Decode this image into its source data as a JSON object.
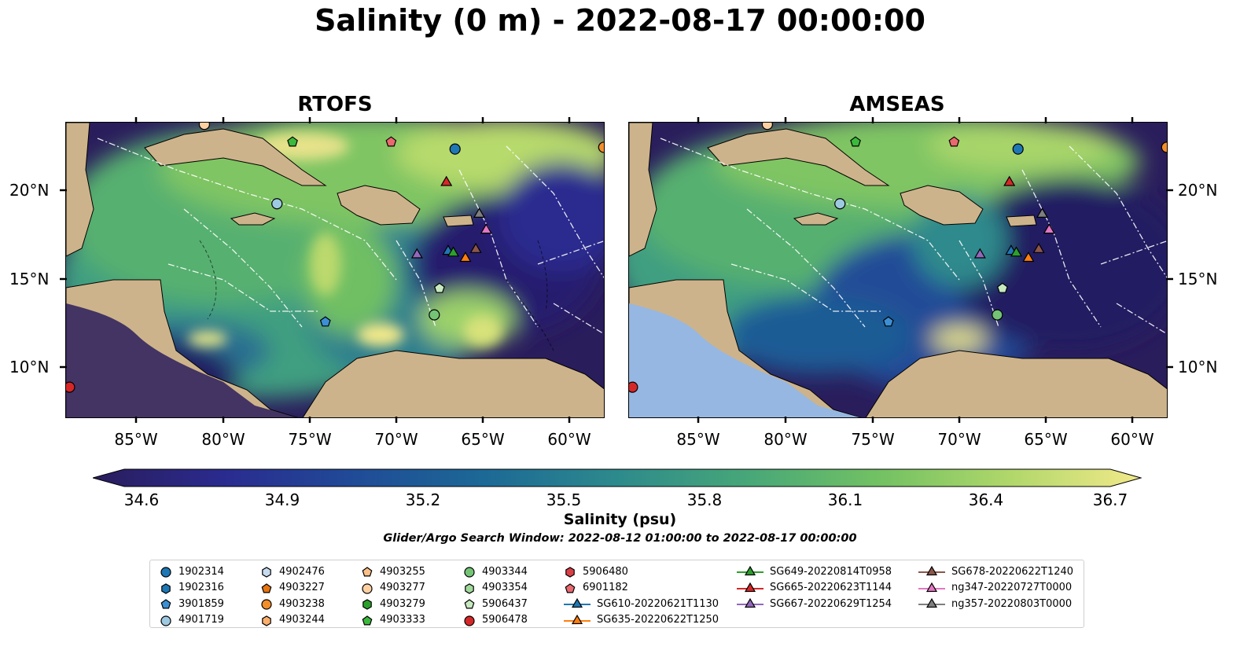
{
  "title": "Salinity (0 m) - 2022-08-17 00:00:00",
  "panels": [
    {
      "title": "RTOFS"
    },
    {
      "title": "AMSEAS"
    }
  ],
  "lat_labels": [
    "20°N",
    "15°N",
    "10°N"
  ],
  "lon_labels": [
    "85°W",
    "80°W",
    "75°W",
    "70°W",
    "65°W",
    "60°W"
  ],
  "colorbar": {
    "label": "Salinity (psu)",
    "min": 34.6,
    "max": 36.7,
    "ticks": [
      "34.6",
      "34.9",
      "35.2",
      "35.5",
      "35.8",
      "36.1",
      "36.4",
      "36.7"
    ],
    "colormap": [
      "#2a1d5c",
      "#2a2b8f",
      "#204b97",
      "#1c6996",
      "#2d8a8c",
      "#47a778",
      "#72c163",
      "#b0d76a",
      "#f2e98a"
    ]
  },
  "search_window": "Glider/Argo Search Window: 2022-08-12 01:00:00 to 2022-08-17 00:00:00",
  "land_color": "#cdb38b",
  "deep_sea_color": "#96b7e2",
  "legend": [
    {
      "label": "1902314",
      "marker": "circle",
      "color": "#1f77b4"
    },
    {
      "label": "1902316",
      "marker": "hexagon",
      "color": "#1f77b4"
    },
    {
      "label": "3901859",
      "marker": "pentagon",
      "color": "#3b8fd4"
    },
    {
      "label": "4901719",
      "marker": "circle",
      "color": "#9ecae1"
    },
    {
      "label": "4902476",
      "marker": "hexagon",
      "color": "#c6dbef"
    },
    {
      "label": "4903227",
      "marker": "pentagon",
      "color": "#e6740f"
    },
    {
      "label": "4903238",
      "marker": "circle",
      "color": "#f28e2b"
    },
    {
      "label": "4903244",
      "marker": "hexagon",
      "color": "#fdae6b"
    },
    {
      "label": "4903255",
      "marker": "pentagon",
      "color": "#fdc088"
    },
    {
      "label": "4903277",
      "marker": "circle",
      "color": "#fdd0a2"
    },
    {
      "label": "4903279",
      "marker": "hexagon",
      "color": "#2ca02c"
    },
    {
      "label": "4903333",
      "marker": "pentagon",
      "color": "#3cb83c"
    },
    {
      "label": "4903344",
      "marker": "circle",
      "color": "#74c476"
    },
    {
      "label": "4903354",
      "marker": "hexagon",
      "color": "#a1d99b"
    },
    {
      "label": "5906437",
      "marker": "pentagon",
      "color": "#c7e9c0"
    },
    {
      "label": "5906478",
      "marker": "circle",
      "color": "#d62728"
    },
    {
      "label": "5906480",
      "marker": "hexagon",
      "color": "#d94046"
    },
    {
      "label": "6901182",
      "marker": "pentagon",
      "color": "#e8696f"
    },
    {
      "label": "SG610-20220621T1130",
      "marker": "triangle-line",
      "color": "#1f77b4"
    },
    {
      "label": "SG635-20220622T1250",
      "marker": "triangle-line",
      "color": "#ff7f0e"
    },
    {
      "label": "SG649-20220814T0958",
      "marker": "triangle-line",
      "color": "#2ca02c"
    },
    {
      "label": "SG665-20220623T1144",
      "marker": "triangle-line",
      "color": "#d62728"
    },
    {
      "label": "SG667-20220629T1254",
      "marker": "triangle-line",
      "color": "#9467bd"
    },
    {
      "label": "SG678-20220622T1240",
      "marker": "triangle-line",
      "color": "#8c564b"
    },
    {
      "label": "ng347-20220727T0000",
      "marker": "triangle-line",
      "color": "#e377c2"
    },
    {
      "label": "ng357-20220803T0000",
      "marker": "triangle-line",
      "color": "#7f7f7f"
    }
  ],
  "markers": [
    {
      "id": "1902314",
      "marker": "circle",
      "color": "#1f77b4",
      "lon": -66.6,
      "lat": 22.4
    },
    {
      "id": "4901719",
      "marker": "circle",
      "color": "#9ecae1",
      "lon": -76.9,
      "lat": 19.3
    },
    {
      "id": "3901859",
      "marker": "pentagon",
      "color": "#3b8fd4",
      "lon": -74.1,
      "lat": 12.6
    },
    {
      "id": "4903333",
      "marker": "pentagon",
      "color": "#3cb83c",
      "lon": -76.0,
      "lat": 22.8
    },
    {
      "id": "6901182",
      "marker": "pentagon",
      "color": "#e8696f",
      "lon": -70.3,
      "lat": 22.8
    },
    {
      "id": "4903277",
      "marker": "circle",
      "color": "#fdd0a2",
      "lon": -81.1,
      "lat": 23.8
    },
    {
      "id": "4903238",
      "marker": "circle",
      "color": "#f28e2b",
      "lon": -58.0,
      "lat": 22.5
    },
    {
      "id": "5906478",
      "marker": "circle",
      "color": "#d62728",
      "lon": -88.9,
      "lat": 8.9
    },
    {
      "id": "4903344",
      "marker": "circle",
      "color": "#74c476",
      "lon": -67.8,
      "lat": 13.0
    },
    {
      "id": "5906437",
      "marker": "pentagon",
      "color": "#c7e9c0",
      "lon": -67.5,
      "lat": 14.5
    },
    {
      "id": "SG665-20220623T1144",
      "marker": "triangle",
      "color": "#d62728",
      "lon": -67.1,
      "lat": 20.5
    },
    {
      "id": "ng357-20220803T0000",
      "marker": "triangle",
      "color": "#7f7f7f",
      "lon": -65.2,
      "lat": 18.7
    },
    {
      "id": "ng347-20220727T0000",
      "marker": "triangle",
      "color": "#e377c2",
      "lon": -64.8,
      "lat": 17.8
    },
    {
      "id": "SG667-20220629T1254",
      "marker": "triangle",
      "color": "#9467bd",
      "lon": -68.8,
      "lat": 16.4
    },
    {
      "id": "SG610-20220621T1130",
      "marker": "triangle",
      "color": "#1f77b4",
      "lon": -67.0,
      "lat": 16.6
    },
    {
      "id": "SG649-20220814T0958",
      "marker": "triangle",
      "color": "#2ca02c",
      "lon": -66.7,
      "lat": 16.5
    },
    {
      "id": "SG635-20220622T1250",
      "marker": "triangle",
      "color": "#ff7f0e",
      "lon": -66.0,
      "lat": 16.2
    },
    {
      "id": "SG678-20220622T1240",
      "marker": "triangle",
      "color": "#8c564b",
      "lon": -65.4,
      "lat": 16.7
    }
  ]
}
